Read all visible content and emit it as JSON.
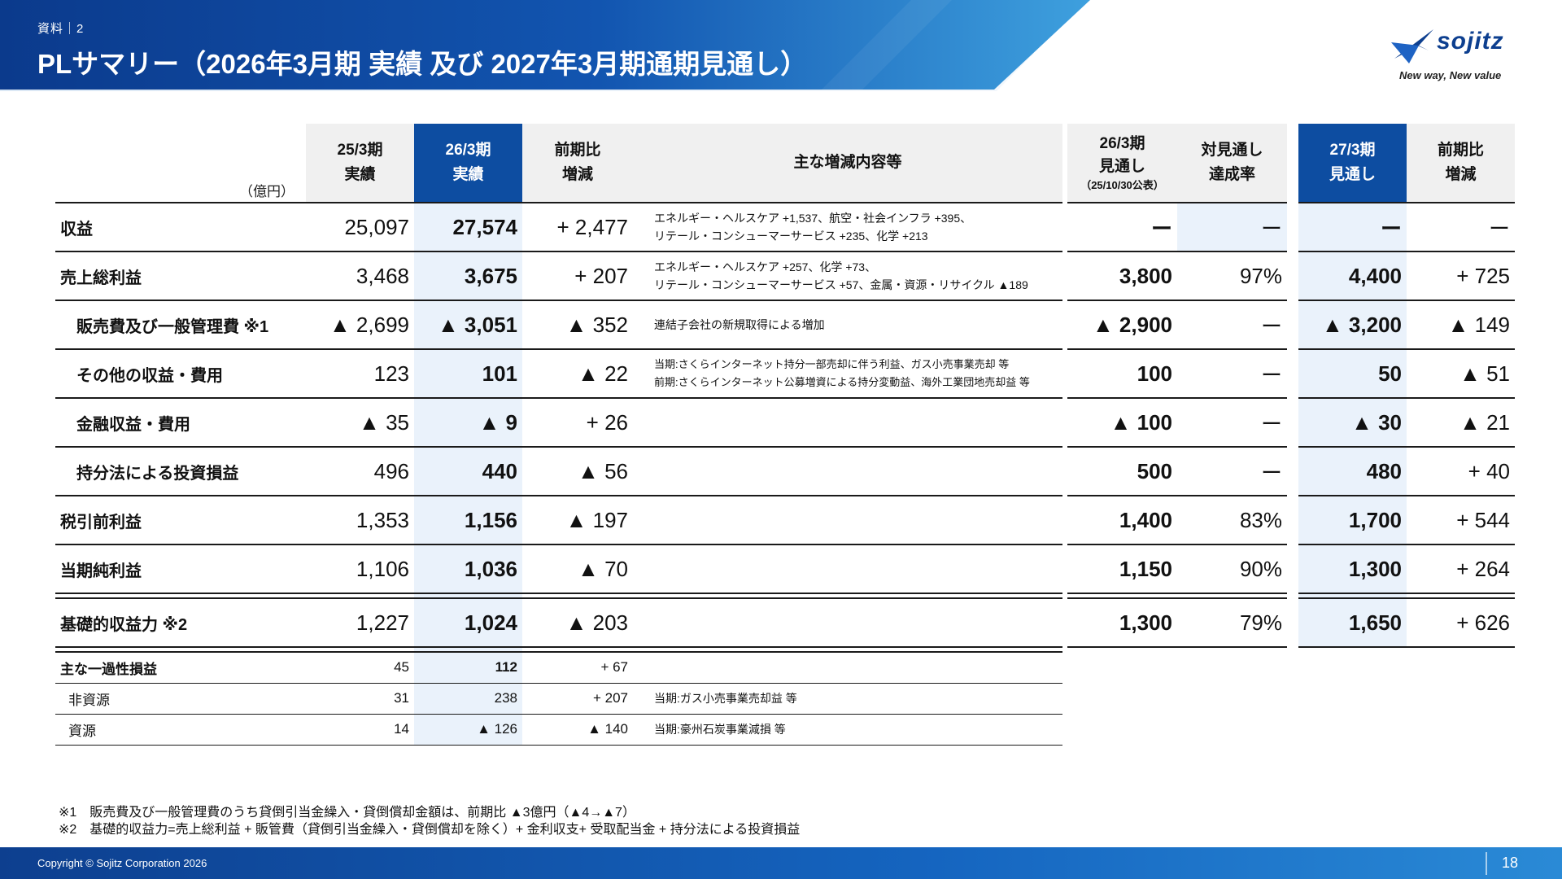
{
  "header": {
    "doc_label": "資料｜2",
    "title": "PLサマリー（2026年3月期 実績 及び 2027年3月期通期見通し）"
  },
  "logo": {
    "wordmark": "sojitz",
    "tagline": "New way, New value",
    "icon": "sojitz-logo-mark"
  },
  "table": {
    "unit": "（億円）",
    "headers": {
      "fy25": [
        "25/3期",
        "実績"
      ],
      "fy26": [
        "26/3期",
        "実績"
      ],
      "yoy": [
        "前期比",
        "増減"
      ],
      "notes": "主な増減内容等",
      "fc26": [
        "26/3期",
        "見通し"
      ],
      "fc26_sub": "（25/10/30公表）",
      "rate": [
        "対見通し",
        "達成率"
      ],
      "fc27": [
        "27/3期",
        "見通し"
      ],
      "yoy27": [
        "前期比",
        "増減"
      ]
    },
    "rows": [
      {
        "label": "収益",
        "fy25": "25,097",
        "fy26": "27,574",
        "yoy": "+ 2,477",
        "note1": "エネルギー・ヘルスケア +1,537、航空・社会インフラ +395、",
        "note2": "リテール・コンシューマーサービス +235、化学 +213",
        "fc26": "ー",
        "rate": "ー",
        "fc27": "ー",
        "yoy27": "ー"
      },
      {
        "label": "売上総利益",
        "fy25": "3,468",
        "fy26": "3,675",
        "yoy": "+ 207",
        "note1": "エネルギー・ヘルスケア +257、化学 +73、",
        "note2": "リテール・コンシューマーサービス +57、金属・資源・リサイクル ▲189",
        "fc26": "3,800",
        "rate": "97%",
        "fc27": "4,400",
        "yoy27": "+ 725"
      },
      {
        "label": "販売費及び一般管理費 ※1",
        "fy25": "▲ 2,699",
        "fy26": "▲ 3,051",
        "yoy": "▲ 352",
        "note1": "連結子会社の新規取得による増加",
        "note2": "",
        "fc26": "▲ 2,900",
        "rate": "ー",
        "fc27": "▲ 3,200",
        "yoy27": "▲ 149"
      },
      {
        "label": "その他の収益・費用",
        "fy25": "123",
        "fy26": "101",
        "yoy": "▲ 22",
        "note1": "当期:さくらインターネット持分一部売却に伴う利益、ガス小売事業売却 等",
        "note2": "前期:さくらインターネット公募増資による持分変動益、海外工業団地売却益 等",
        "fc26": "100",
        "rate": "ー",
        "fc27": "50",
        "yoy27": "▲ 51"
      },
      {
        "label": "金融収益・費用",
        "fy25": "▲ 35",
        "fy26": "▲ 9",
        "yoy": "+ 26",
        "note1": "",
        "note2": "",
        "fc26": "▲ 100",
        "rate": "ー",
        "fc27": "▲ 30",
        "yoy27": "▲ 21"
      },
      {
        "label": "持分法による投資損益",
        "fy25": "496",
        "fy26": "440",
        "yoy": "▲ 56",
        "note1": "",
        "note2": "",
        "fc26": "500",
        "rate": "ー",
        "fc27": "480",
        "yoy27": "+ 40"
      },
      {
        "label": "税引前利益",
        "fy25": "1,353",
        "fy26": "1,156",
        "yoy": "▲ 197",
        "note1": "",
        "note2": "",
        "fc26": "1,400",
        "rate": "83%",
        "fc27": "1,700",
        "yoy27": "+ 544"
      },
      {
        "label": "当期純利益",
        "fy25": "1,106",
        "fy26": "1,036",
        "yoy": "▲ 70",
        "note1": "",
        "note2": "",
        "fc26": "1,150",
        "rate": "90%",
        "fc27": "1,300",
        "yoy27": "+ 264"
      },
      {
        "label": "基礎的収益力 ※2",
        "fy25": "1,227",
        "fy26": "1,024",
        "yoy": "▲ 203",
        "note1": "",
        "note2": "",
        "fc26": "1,300",
        "rate": "79%",
        "fc27": "1,650",
        "yoy27": "+ 626"
      }
    ],
    "one_off": [
      {
        "label": "主な一過性損益",
        "fy25": "45",
        "fy26": "112",
        "yoy": "+ 67",
        "note": ""
      },
      {
        "label": "非資源",
        "fy25": "31",
        "fy26": "238",
        "yoy": "+ 207",
        "note": "当期:ガス小売事業売却益 等"
      },
      {
        "label": "資源",
        "fy25": "14",
        "fy26": "▲ 126",
        "yoy": "▲ 140",
        "note": "当期:豪州石炭事業減損 等"
      }
    ]
  },
  "footnotes": {
    "n1": "※1　販売費及び一般管理費のうち貸倒引当金繰入・貸倒償却金額は、前期比 ▲3億円（▲4→▲7）",
    "n2": "※2　基礎的収益力=売上総利益 + 販管費（貸倒引当金繰入・貸倒償却を除く）+ 金利収支+ 受取配当金 + 持分法による投資損益"
  },
  "footer": {
    "copyright": "Copyright © Sojitz Corporation 2026",
    "page": "18"
  },
  "colors": {
    "navy": "#0d3f8f",
    "header_blue": "#0d4da1",
    "tint": "#eaf2fb",
    "header_gray": "#f0f0f0"
  }
}
